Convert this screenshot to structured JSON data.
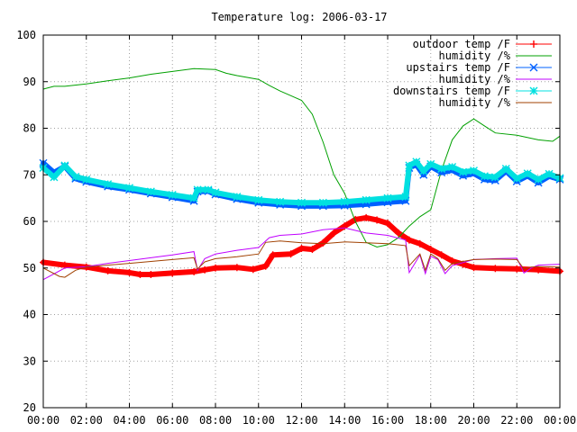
{
  "chart_data": {
    "type": "line",
    "title": "Temperature log: 2006-03-17",
    "xlabel": "",
    "ylabel": "",
    "xlim": [
      "00:00",
      "24:00"
    ],
    "ylim": [
      20,
      100
    ],
    "grid": true,
    "legend_position": "top-right",
    "x_tick_labels": [
      "00:00",
      "02:00",
      "04:00",
      "06:00",
      "08:00",
      "10:00",
      "12:00",
      "14:00",
      "16:00",
      "18:00",
      "20:00",
      "22:00",
      "00:00"
    ],
    "y_tick_labels": [
      "20",
      "30",
      "40",
      "50",
      "60",
      "70",
      "80",
      "90",
      "100"
    ],
    "series": [
      {
        "name": "outdoor temp /F",
        "color": "#ff0000",
        "marker": "plus",
        "points": [
          [
            "00:00",
            51.2
          ],
          [
            "01:00",
            50.6
          ],
          [
            "02:00",
            50.2
          ],
          [
            "03:00",
            49.4
          ],
          [
            "04:00",
            49.0
          ],
          [
            "04:30",
            48.6
          ],
          [
            "05:00",
            48.6
          ],
          [
            "06:00",
            48.9
          ],
          [
            "07:00",
            49.2
          ],
          [
            "07:30",
            49.6
          ],
          [
            "08:00",
            50.0
          ],
          [
            "09:00",
            50.1
          ],
          [
            "09:45",
            49.7
          ],
          [
            "10:20",
            50.4
          ],
          [
            "10:40",
            52.8
          ],
          [
            "11:30",
            53.0
          ],
          [
            "12:00",
            54.2
          ],
          [
            "12:30",
            54.0
          ],
          [
            "13:00",
            55.4
          ],
          [
            "13:30",
            57.5
          ],
          [
            "14:00",
            59.0
          ],
          [
            "14:30",
            60.4
          ],
          [
            "15:00",
            60.8
          ],
          [
            "15:30",
            60.3
          ],
          [
            "16:00",
            59.6
          ],
          [
            "16:30",
            57.5
          ],
          [
            "17:00",
            56.0
          ],
          [
            "17:30",
            55.2
          ],
          [
            "18:00",
            54.0
          ],
          [
            "18:30",
            52.8
          ],
          [
            "19:00",
            51.5
          ],
          [
            "19:30",
            50.8
          ],
          [
            "20:00",
            50.1
          ],
          [
            "21:00",
            49.9
          ],
          [
            "22:00",
            49.8
          ],
          [
            "23:00",
            49.6
          ],
          [
            "24:00",
            49.3
          ]
        ]
      },
      {
        "name": "humidity /%",
        "color": "#00a000",
        "marker": "none",
        "points": [
          [
            "00:00",
            88.4
          ],
          [
            "00:30",
            89.0
          ],
          [
            "01:00",
            89.0
          ],
          [
            "02:00",
            89.5
          ],
          [
            "03:00",
            90.2
          ],
          [
            "04:00",
            90.8
          ],
          [
            "05:00",
            91.6
          ],
          [
            "06:00",
            92.2
          ],
          [
            "07:00",
            92.8
          ],
          [
            "08:00",
            92.6
          ],
          [
            "08:30",
            91.8
          ],
          [
            "09:00",
            91.3
          ],
          [
            "10:00",
            90.5
          ],
          [
            "10:30",
            89.2
          ],
          [
            "11:00",
            88.0
          ],
          [
            "11:30",
            87.0
          ],
          [
            "12:00",
            86.0
          ],
          [
            "12:30",
            83.0
          ],
          [
            "13:00",
            77.0
          ],
          [
            "13:30",
            70.0
          ],
          [
            "14:00",
            66.0
          ],
          [
            "14:30",
            60.0
          ],
          [
            "15:00",
            55.5
          ],
          [
            "15:30",
            54.5
          ],
          [
            "16:00",
            55.0
          ],
          [
            "16:30",
            56.5
          ],
          [
            "17:00",
            59.0
          ],
          [
            "17:30",
            61.0
          ],
          [
            "18:00",
            62.5
          ],
          [
            "18:30",
            71.0
          ],
          [
            "19:00",
            77.5
          ],
          [
            "19:30",
            80.5
          ],
          [
            "20:00",
            82.0
          ],
          [
            "20:30",
            80.5
          ],
          [
            "21:00",
            79.0
          ],
          [
            "22:00",
            78.5
          ],
          [
            "23:00",
            77.5
          ],
          [
            "23:40",
            77.2
          ],
          [
            "24:00",
            78.3
          ]
        ]
      },
      {
        "name": "upstairs temp /F",
        "color": "#0060ff",
        "marker": "cross",
        "points": [
          [
            "00:00",
            72.5
          ],
          [
            "00:30",
            70.5
          ],
          [
            "01:00",
            71.8
          ],
          [
            "01:30",
            69.2
          ],
          [
            "02:00",
            68.5
          ],
          [
            "03:00",
            67.5
          ],
          [
            "04:00",
            66.8
          ],
          [
            "05:00",
            66.0
          ],
          [
            "06:00",
            65.2
          ],
          [
            "07:00",
            64.4
          ],
          [
            "07:10",
            66.4
          ],
          [
            "07:40",
            66.5
          ],
          [
            "08:00",
            65.8
          ],
          [
            "09:00",
            64.8
          ],
          [
            "10:00",
            64.0
          ],
          [
            "11:00",
            63.6
          ],
          [
            "12:00",
            63.3
          ],
          [
            "13:00",
            63.3
          ],
          [
            "14:00",
            63.4
          ],
          [
            "15:00",
            63.7
          ],
          [
            "16:00",
            64.1
          ],
          [
            "16:50",
            64.4
          ],
          [
            "17:00",
            71.5
          ],
          [
            "17:20",
            72.2
          ],
          [
            "17:40",
            70.0
          ],
          [
            "18:00",
            71.8
          ],
          [
            "18:30",
            70.5
          ],
          [
            "19:00",
            71.0
          ],
          [
            "19:30",
            69.8
          ],
          [
            "20:00",
            70.3
          ],
          [
            "20:30",
            69.0
          ],
          [
            "21:00",
            68.8
          ],
          [
            "21:30",
            70.8
          ],
          [
            "22:00",
            68.6
          ],
          [
            "22:30",
            69.8
          ],
          [
            "23:00",
            68.3
          ],
          [
            "23:30",
            69.7
          ],
          [
            "24:00",
            69.0
          ]
        ]
      },
      {
        "name": "humidity /%",
        "color": "#c000ff",
        "marker": "none",
        "points": [
          [
            "00:00",
            47.5
          ],
          [
            "01:00",
            50.0
          ],
          [
            "02:00",
            50.3
          ],
          [
            "03:00",
            51.0
          ],
          [
            "04:00",
            51.6
          ],
          [
            "05:00",
            52.2
          ],
          [
            "06:00",
            52.8
          ],
          [
            "07:00",
            53.5
          ],
          [
            "07:10",
            49.5
          ],
          [
            "07:30",
            52.0
          ],
          [
            "08:00",
            53.0
          ],
          [
            "09:00",
            53.8
          ],
          [
            "10:00",
            54.4
          ],
          [
            "10:30",
            56.5
          ],
          [
            "11:00",
            57.0
          ],
          [
            "12:00",
            57.3
          ],
          [
            "13:00",
            58.2
          ],
          [
            "14:00",
            58.6
          ],
          [
            "15:00",
            57.5
          ],
          [
            "16:00",
            57.0
          ],
          [
            "16:50",
            56.0
          ],
          [
            "17:00",
            49.0
          ],
          [
            "17:30",
            52.8
          ],
          [
            "17:45",
            48.8
          ],
          [
            "18:00",
            52.5
          ],
          [
            "18:20",
            51.8
          ],
          [
            "18:40",
            48.8
          ],
          [
            "19:00",
            50.5
          ],
          [
            "20:00",
            51.8
          ],
          [
            "21:00",
            52.0
          ],
          [
            "22:00",
            52.1
          ],
          [
            "22:20",
            48.9
          ],
          [
            "22:40",
            50.0
          ],
          [
            "23:00",
            50.6
          ],
          [
            "24:00",
            50.8
          ]
        ]
      },
      {
        "name": "downstairs temp /F",
        "color": "#00e0e0",
        "marker": "star",
        "points": [
          [
            "00:00",
            71.5
          ],
          [
            "00:30",
            69.5
          ],
          [
            "01:00",
            72.0
          ],
          [
            "01:30",
            69.6
          ],
          [
            "02:00",
            69.0
          ],
          [
            "03:00",
            68.0
          ],
          [
            "04:00",
            67.2
          ],
          [
            "05:00",
            66.4
          ],
          [
            "06:00",
            65.7
          ],
          [
            "07:00",
            65.0
          ],
          [
            "07:10",
            66.8
          ],
          [
            "07:40",
            66.8
          ],
          [
            "08:00",
            66.2
          ],
          [
            "09:00",
            65.3
          ],
          [
            "10:00",
            64.6
          ],
          [
            "11:00",
            64.2
          ],
          [
            "12:00",
            64.0
          ],
          [
            "13:00",
            64.0
          ],
          [
            "14:00",
            64.2
          ],
          [
            "15:00",
            64.6
          ],
          [
            "16:00",
            65.0
          ],
          [
            "16:50",
            65.3
          ],
          [
            "17:00",
            72.0
          ],
          [
            "17:20",
            72.8
          ],
          [
            "17:40",
            70.8
          ],
          [
            "18:00",
            72.3
          ],
          [
            "18:30",
            71.3
          ],
          [
            "19:00",
            71.7
          ],
          [
            "19:30",
            70.6
          ],
          [
            "20:00",
            70.9
          ],
          [
            "20:30",
            69.7
          ],
          [
            "21:00",
            69.5
          ],
          [
            "21:30",
            71.3
          ],
          [
            "22:00",
            69.2
          ],
          [
            "22:30",
            70.3
          ],
          [
            "23:00",
            69.0
          ],
          [
            "23:30",
            70.2
          ],
          [
            "24:00",
            69.3
          ]
        ]
      },
      {
        "name": "humidity /%",
        "color": "#a04000",
        "marker": "none",
        "points": [
          [
            "00:00",
            50.0
          ],
          [
            "00:45",
            48.2
          ],
          [
            "01:00",
            48.0
          ],
          [
            "01:30",
            49.5
          ],
          [
            "02:00",
            50.2
          ],
          [
            "03:00",
            50.6
          ],
          [
            "04:00",
            51.0
          ],
          [
            "05:00",
            51.4
          ],
          [
            "06:00",
            51.8
          ],
          [
            "07:00",
            52.2
          ],
          [
            "07:10",
            49.8
          ],
          [
            "07:30",
            51.3
          ],
          [
            "08:00",
            52.0
          ],
          [
            "09:00",
            52.4
          ],
          [
            "10:00",
            53.0
          ],
          [
            "10:20",
            55.5
          ],
          [
            "11:00",
            55.8
          ],
          [
            "12:00",
            55.4
          ],
          [
            "13:00",
            55.2
          ],
          [
            "14:00",
            55.6
          ],
          [
            "15:00",
            55.4
          ],
          [
            "16:00",
            55.2
          ],
          [
            "16:50",
            54.8
          ],
          [
            "17:00",
            50.5
          ],
          [
            "17:30",
            53.0
          ],
          [
            "17:45",
            49.5
          ],
          [
            "18:00",
            53.0
          ],
          [
            "18:20",
            52.0
          ],
          [
            "18:40",
            49.5
          ],
          [
            "19:00",
            51.0
          ],
          [
            "20:00",
            51.8
          ],
          [
            "21:00",
            51.9
          ],
          [
            "22:00",
            51.8
          ],
          [
            "22:20",
            49.8
          ],
          [
            "22:40",
            50.2
          ],
          [
            "23:00",
            50.3
          ],
          [
            "24:00",
            50.2
          ]
        ]
      }
    ]
  }
}
